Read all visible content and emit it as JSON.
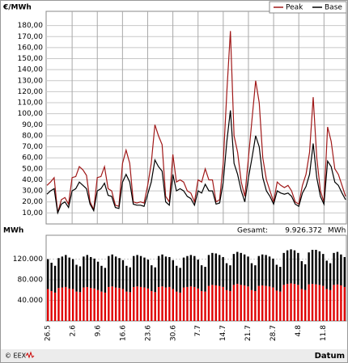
{
  "chart_data": [
    {
      "type": "line",
      "ylabel": "€/MWh",
      "ylim": [
        0,
        190
      ],
      "yticks": [
        {
          "value": 10,
          "label": "10,00"
        },
        {
          "value": 20,
          "label": "20,00"
        },
        {
          "value": 30,
          "label": "30,00"
        },
        {
          "value": 40,
          "label": "40,00"
        },
        {
          "value": 50,
          "label": "50,00"
        },
        {
          "value": 60,
          "label": "60,00"
        },
        {
          "value": 70,
          "label": "70,00"
        },
        {
          "value": 80,
          "label": "80,00"
        },
        {
          "value": 90,
          "label": "90,00"
        },
        {
          "value": 100,
          "label": "100,00"
        },
        {
          "value": 110,
          "label": "110,00"
        },
        {
          "value": 120,
          "label": "120,00"
        },
        {
          "value": 130,
          "label": "130,00"
        },
        {
          "value": 140,
          "label": "140,00"
        },
        {
          "value": 150,
          "label": "150,00"
        },
        {
          "value": 160,
          "label": "160,00"
        },
        {
          "value": 170,
          "label": "170,00"
        },
        {
          "value": 180,
          "label": "180,00"
        }
      ],
      "grid": true,
      "legend": "top-right",
      "series": [
        {
          "name": "Peak",
          "color": "#a01818",
          "values": [
            35,
            38,
            42,
            10,
            22,
            24,
            18,
            42,
            43,
            52,
            49,
            44,
            20,
            13,
            42,
            43,
            52,
            32,
            30,
            17,
            16,
            55,
            67,
            55,
            20,
            19,
            20,
            19,
            35,
            55,
            90,
            80,
            72,
            25,
            20,
            63,
            38,
            40,
            38,
            30,
            28,
            20,
            40,
            38,
            50,
            40,
            40,
            20,
            22,
            55,
            120,
            175,
            80,
            65,
            38,
            25,
            60,
            95,
            130,
            110,
            60,
            40,
            30,
            20,
            38,
            35,
            33,
            35,
            30,
            20,
            18,
            35,
            45,
            65,
            115,
            60,
            30,
            20,
            88,
            75,
            50,
            45,
            35,
            25
          ]
        },
        {
          "name": "Base",
          "color": "#000000",
          "values": [
            27,
            30,
            32,
            10,
            18,
            20,
            15,
            30,
            32,
            38,
            35,
            32,
            18,
            12,
            30,
            32,
            37,
            26,
            25,
            15,
            14,
            38,
            45,
            38,
            18,
            17,
            17,
            16,
            27,
            38,
            58,
            52,
            48,
            20,
            17,
            45,
            30,
            32,
            30,
            25,
            23,
            17,
            30,
            28,
            36,
            30,
            30,
            18,
            19,
            38,
            75,
            103,
            55,
            45,
            30,
            20,
            42,
            60,
            80,
            70,
            42,
            30,
            25,
            18,
            30,
            28,
            27,
            28,
            25,
            18,
            16,
            28,
            34,
            45,
            73,
            42,
            25,
            18,
            57,
            52,
            38,
            35,
            28,
            22
          ]
        }
      ]
    },
    {
      "type": "stacked-bar",
      "ylabel": "MWh",
      "xlabel": "Datum",
      "total_title": "Gesamt:",
      "total_text": "9.926.372",
      "total_unit": "MWh",
      "ylim": [
        0,
        160000
      ],
      "yticks": [
        {
          "value": 40000,
          "label": "40.000"
        },
        {
          "value": 80000,
          "label": "80.000"
        },
        {
          "value": 120000,
          "label": "120.000"
        }
      ],
      "grid": true,
      "categories": [
        "26.5",
        null,
        null,
        null,
        null,
        null,
        null,
        "2.6",
        null,
        null,
        null,
        null,
        null,
        null,
        "9.6",
        null,
        null,
        null,
        null,
        null,
        null,
        "16.6",
        null,
        null,
        null,
        null,
        null,
        null,
        "23.6",
        null,
        null,
        null,
        null,
        null,
        null,
        "30.6",
        null,
        null,
        null,
        null,
        null,
        null,
        "7.7",
        null,
        null,
        null,
        null,
        null,
        null,
        "14.7",
        null,
        null,
        null,
        null,
        null,
        null,
        "21.7",
        null,
        null,
        null,
        null,
        null,
        null,
        "28.7",
        null,
        null,
        null,
        null,
        null,
        null,
        "4.8",
        null,
        null,
        null,
        null,
        null,
        null,
        "11.8",
        null,
        null,
        null,
        null,
        null,
        null
      ],
      "series": [
        {
          "color": "#e00000",
          "values": [
            62000,
            58000,
            55000,
            64000,
            65000,
            66000,
            63000,
            62000,
            57000,
            56000,
            65000,
            66000,
            64000,
            63000,
            60000,
            57000,
            55000,
            66000,
            67000,
            65000,
            64000,
            62000,
            57000,
            56000,
            66000,
            67000,
            66000,
            65000,
            63000,
            58000,
            56000,
            66000,
            67000,
            65000,
            66000,
            62000,
            57000,
            55000,
            65000,
            66000,
            67000,
            66000,
            63000,
            58000,
            57000,
            68000,
            70000,
            69000,
            68000,
            66000,
            60000,
            58000,
            70000,
            72000,
            70000,
            69000,
            67000,
            60000,
            58000,
            68000,
            69000,
            68000,
            67000,
            65000,
            59000,
            57000,
            70000,
            72000,
            73000,
            72000,
            70000,
            62000,
            60000,
            71000,
            72000,
            71000,
            70000,
            68000,
            62000,
            60000,
            70000,
            71000,
            69000,
            66000
          ]
        },
        {
          "color": "#000000",
          "values": [
            58000,
            55000,
            52000,
            58000,
            60000,
            62000,
            60000,
            58000,
            52000,
            50000,
            60000,
            62000,
            60000,
            58000,
            55000,
            50000,
            48000,
            60000,
            62000,
            60000,
            58000,
            56000,
            50000,
            48000,
            60000,
            61000,
            60000,
            58000,
            56000,
            50000,
            48000,
            60000,
            62000,
            60000,
            58000,
            56000,
            50000,
            48000,
            58000,
            60000,
            61000,
            60000,
            56000,
            50000,
            48000,
            60000,
            62000,
            62000,
            60000,
            58000,
            52000,
            50000,
            60000,
            62000,
            62000,
            60000,
            58000,
            52000,
            50000,
            58000,
            60000,
            60000,
            58000,
            56000,
            50000,
            48000,
            62000,
            65000,
            66000,
            65000,
            62000,
            54000,
            50000,
            62000,
            66000,
            67000,
            65000,
            62000,
            55000,
            52000,
            62000,
            63000,
            60000,
            58000
          ]
        }
      ]
    }
  ]
}
